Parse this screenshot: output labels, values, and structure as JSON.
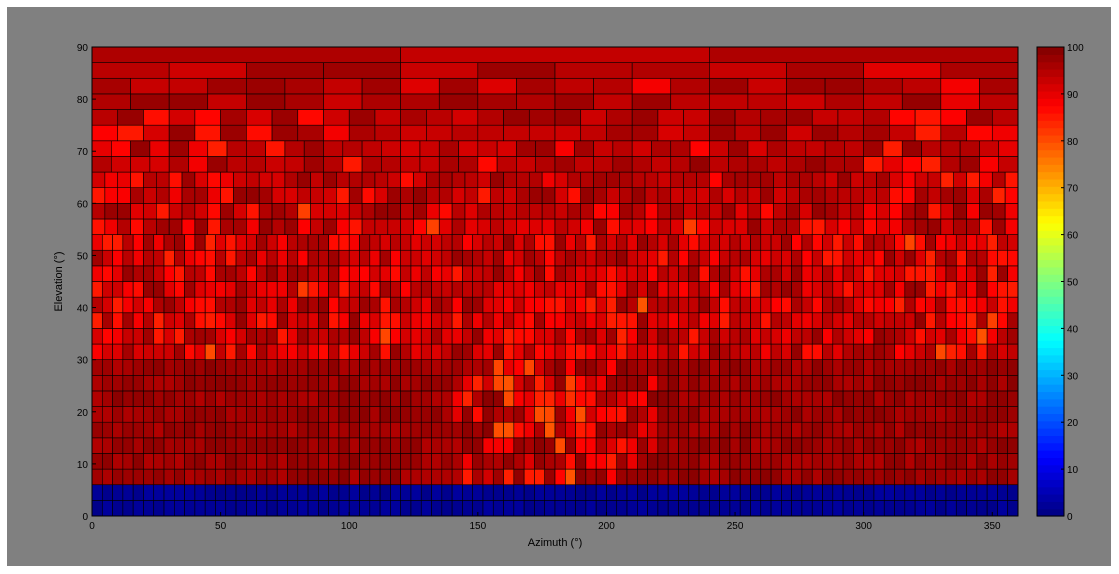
{
  "chart_data": {
    "type": "heatmap",
    "title": "",
    "xlabel": "Azimuth (°)",
    "ylabel": "Elevation (°)",
    "xlim": [
      0,
      360
    ],
    "ylim": [
      0,
      90
    ],
    "x_ticks": [
      "0",
      "50",
      "100",
      "150",
      "200",
      "250",
      "300",
      "350"
    ],
    "y_ticks": [
      "0",
      "10",
      "20",
      "30",
      "40",
      "50",
      "60",
      "70",
      "80",
      "90"
    ],
    "colorbar": {
      "range": [
        0,
        100
      ],
      "colormap": "jet",
      "ticks": [
        "0",
        "10",
        "20",
        "30",
        "40",
        "50",
        "60",
        "70",
        "80",
        "90",
        "100"
      ]
    },
    "bands_description_values_percent": [
      {
        "elevation": [
          0,
          6
        ],
        "value": 2
      },
      {
        "elevation": [
          6,
          30
        ],
        "value": 97
      },
      {
        "elevation": [
          30,
          60
        ],
        "value": 93
      },
      {
        "elevation": [
          60,
          76
        ],
        "value": 92
      },
      {
        "elevation": [
          76,
          90
        ],
        "value": 94
      }
    ],
    "cell_values_sample": {
      "azimuth_step_deg": 4,
      "rows": [
        {
          "elevation": 90,
          "values": [
            94,
            94,
            94,
            94,
            94,
            94,
            94,
            94,
            94,
            94,
            94,
            94,
            94,
            94,
            94,
            94,
            94,
            94,
            94,
            94,
            94,
            94,
            94,
            94,
            94,
            94,
            94,
            94,
            94,
            94,
            94,
            94,
            94,
            94,
            94,
            94,
            94,
            94,
            94,
            94,
            94,
            94,
            94,
            94,
            94,
            94,
            94,
            94,
            94,
            94,
            94,
            94,
            94,
            94,
            94,
            94,
            94,
            94,
            94,
            94,
            94,
            94,
            94,
            94,
            94,
            94,
            94,
            94,
            94,
            94,
            94,
            94,
            94,
            94,
            94,
            94,
            94,
            94,
            94,
            94,
            94,
            94,
            94,
            94,
            94,
            94,
            94,
            94,
            94,
            94
          ]
        },
        {
          "elevation": 72,
          "values": [
            84,
            88,
            94,
            92,
            95,
            93,
            92,
            90,
            96,
            93,
            91,
            94,
            95,
            94,
            92,
            96,
            94,
            93,
            95,
            92,
            90,
            96,
            94,
            93,
            95,
            94,
            92,
            96,
            93,
            94,
            95,
            93,
            96,
            94,
            92,
            95,
            94,
            93,
            96,
            92,
            94,
            95,
            93,
            96,
            94,
            92,
            95,
            93,
            94,
            96,
            92,
            94,
            95,
            93,
            94,
            96,
            92,
            94,
            95,
            93,
            94,
            96,
            92,
            94,
            95,
            93,
            92,
            90,
            94,
            88,
            86,
            90,
            92,
            94,
            88,
            86,
            84,
            90,
            92,
            88,
            86,
            90,
            92,
            88,
            84,
            86,
            88,
            90,
            92,
            84
          ]
        },
        {
          "elevation": 45,
          "values": [
            88,
            90,
            92,
            86,
            94,
            92,
            88,
            90,
            93,
            91,
            94,
            92,
            90,
            88,
            94,
            93,
            92,
            90,
            94,
            91,
            93,
            92,
            90,
            94,
            92,
            93,
            91,
            94,
            92,
            90,
            88,
            86,
            92,
            90,
            94,
            92,
            88,
            86,
            90,
            92,
            84,
            88,
            90,
            86,
            92,
            88,
            90,
            94,
            92,
            90,
            88,
            93,
            92,
            94,
            90,
            92,
            93,
            91,
            94,
            92,
            90,
            93,
            92,
            94,
            91,
            93,
            92,
            90,
            94,
            92,
            93,
            91,
            94,
            92,
            90,
            88,
            92,
            94,
            90,
            88,
            86,
            92,
            90,
            88,
            86,
            84,
            90,
            88,
            86,
            88
          ]
        },
        {
          "elevation": 20,
          "values": [
            97,
            98,
            97,
            96,
            97,
            98,
            97,
            98,
            96,
            97,
            98,
            97,
            96,
            97,
            98,
            97,
            96,
            97,
            98,
            97,
            96,
            97,
            98,
            97,
            96,
            97,
            96,
            95,
            96,
            94,
            96,
            95,
            97,
            96,
            95,
            93,
            94,
            92,
            90,
            88,
            86,
            88,
            90,
            92,
            86,
            84,
            88,
            86,
            90,
            88,
            92,
            94,
            95,
            96,
            97,
            96,
            97,
            98,
            97,
            96,
            97,
            98,
            97,
            96,
            97,
            98,
            97,
            96,
            97,
            98,
            97,
            96,
            97,
            98,
            97,
            96,
            97,
            98,
            97,
            96,
            97,
            98,
            97,
            96,
            97,
            98,
            97,
            96,
            97,
            98
          ]
        },
        {
          "elevation": 3,
          "values": [
            2,
            2,
            2,
            2,
            2,
            2,
            2,
            2,
            2,
            2,
            2,
            2,
            2,
            2,
            2,
            2,
            2,
            2,
            2,
            2,
            2,
            2,
            2,
            2,
            2,
            2,
            2,
            2,
            2,
            2,
            2,
            2,
            2,
            2,
            2,
            2,
            2,
            2,
            2,
            2,
            2,
            2,
            2,
            2,
            2,
            2,
            2,
            2,
            2,
            2,
            2,
            2,
            2,
            2,
            2,
            2,
            2,
            2,
            2,
            2,
            2,
            2,
            2,
            2,
            2,
            2,
            2,
            2,
            2,
            2,
            2,
            2,
            2,
            2,
            2,
            2,
            2,
            2,
            2,
            2,
            2,
            2,
            2,
            2,
            2,
            2,
            2,
            2,
            2,
            2
          ]
        }
      ]
    }
  }
}
